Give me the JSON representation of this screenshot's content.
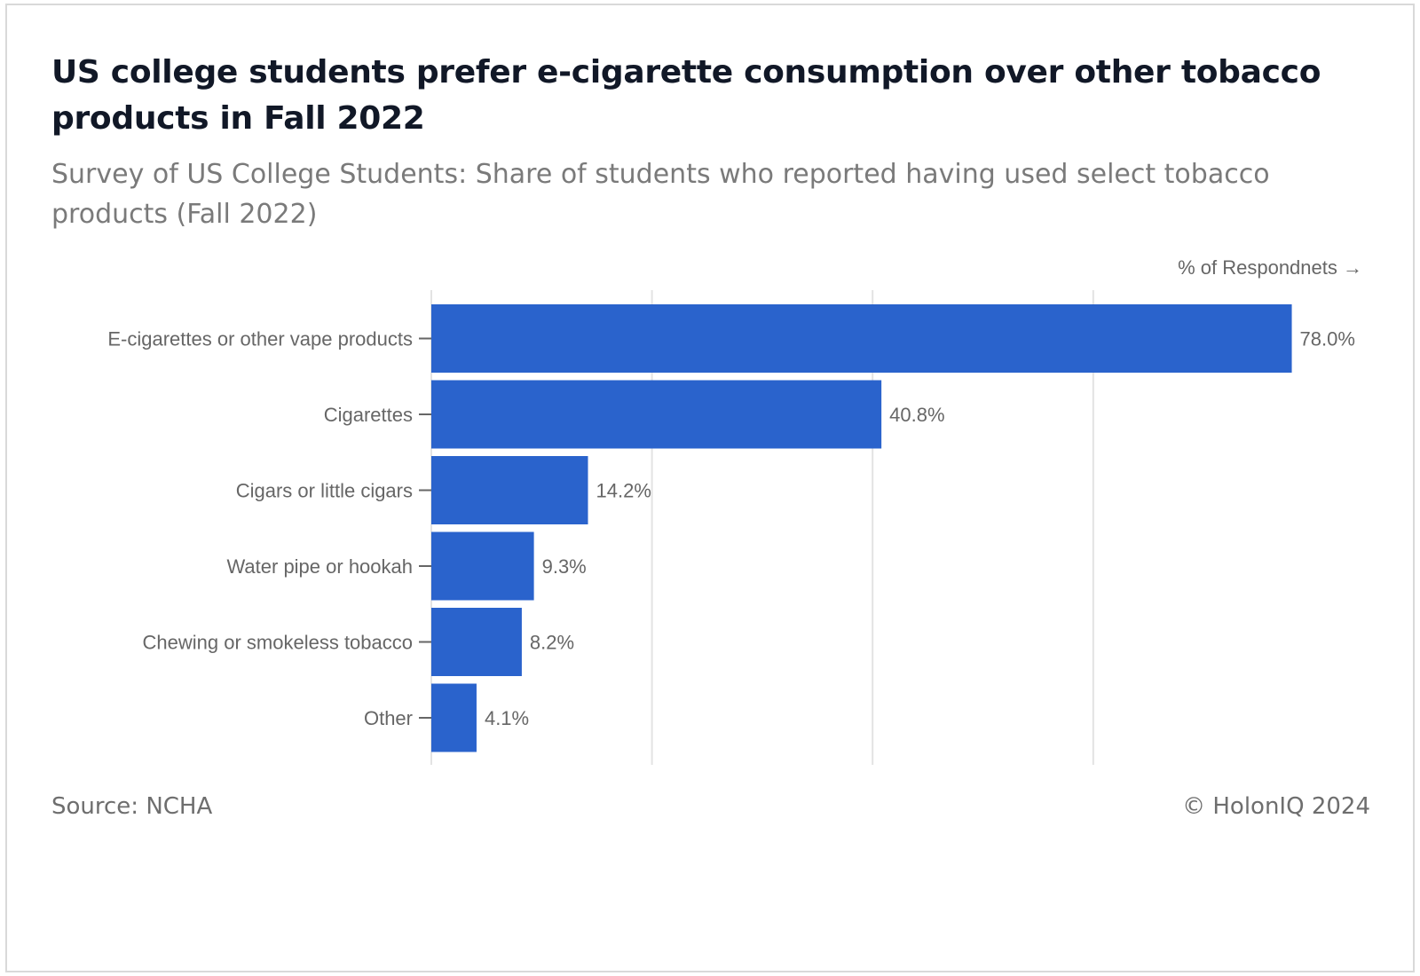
{
  "title": "US college students prefer e-cigarette consumption over other tobacco products in Fall 2022",
  "subtitle": "Survey of US College Students: Share of students who reported having used select tobacco products (Fall 2022)",
  "footer": {
    "source": "Source: NCHA",
    "copyright": "© HolonIQ 2024"
  },
  "colors": {
    "bar": "#2a63cc",
    "grid": "#e3e3e3",
    "label_text": "#666666"
  },
  "chart_data": {
    "type": "bar",
    "orientation": "horizontal",
    "xlabel": "% of Respondnets →",
    "ylabel": "",
    "xlim": [
      0,
      80
    ],
    "gridlines": [
      0,
      20,
      40,
      60
    ],
    "grid": true,
    "categories": [
      "E-cigarettes or other vape products",
      "Cigarettes",
      "Cigars or little cigars",
      "Water pipe or hookah",
      "Chewing or smokeless tobacco",
      "Other"
    ],
    "values": [
      78.0,
      40.8,
      14.2,
      9.3,
      8.2,
      4.1
    ],
    "value_labels": [
      "78.0%",
      "40.8%",
      "14.2%",
      "9.3%",
      "8.2%",
      "4.1%"
    ]
  }
}
